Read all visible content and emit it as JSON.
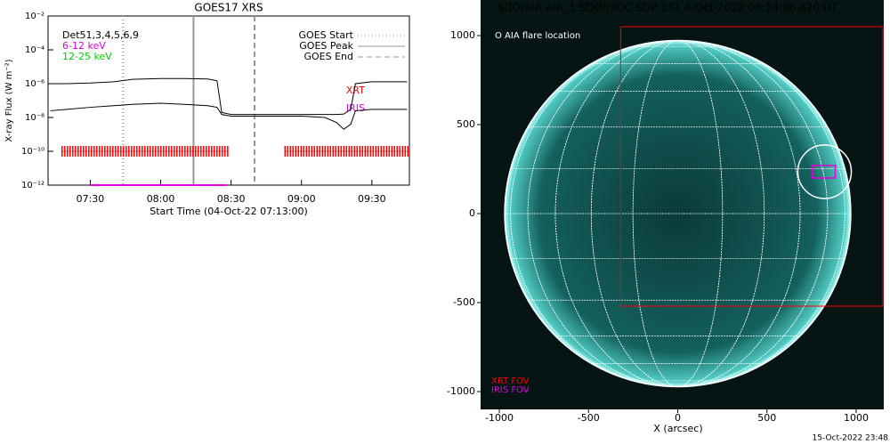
{
  "chart_data": [
    {
      "type": "line",
      "title": "GOES17 XRS",
      "ylabel": "X-ray Flux (W m⁻²)",
      "xlabel": "Start Time (04-Oct-22 07:13:00)",
      "log_y": true,
      "xlim": [
        "07:12",
        "09:46"
      ],
      "ylim": [
        1e-12,
        0.01
      ],
      "xticks": [
        "07:30",
        "08:00",
        "08:30",
        "09:00",
        "09:30"
      ],
      "yticks": [
        {
          "value": 1e-12,
          "label": "10⁻¹²"
        },
        {
          "value": 1e-10,
          "label": "10⁻¹⁰"
        },
        {
          "value": 1e-08,
          "label": "10⁻⁸"
        },
        {
          "value": 1e-06,
          "label": "10⁻⁶"
        },
        {
          "value": 0.0001,
          "label": "10⁻⁴"
        },
        {
          "value": 0.01,
          "label": "10⁻²"
        }
      ],
      "x": [
        "07:13",
        "07:20",
        "07:30",
        "07:40",
        "07:48",
        "08:00",
        "08:10",
        "08:20",
        "08:24",
        "08:26",
        "08:30",
        "08:45",
        "09:00",
        "09:10",
        "09:15",
        "09:18",
        "09:21",
        "09:23",
        "09:30",
        "09:40",
        "09:45"
      ],
      "series": [
        {
          "color": "#000000",
          "values": [
            1e-06,
            1e-06,
            1.1e-06,
            1.3e-06,
            1.8e-06,
            2e-06,
            2e-06,
            1.9e-06,
            1.5e-06,
            2e-08,
            1.5e-08,
            1.5e-08,
            1.5e-08,
            1.5e-08,
            1.5e-08,
            1.6e-08,
            3e-08,
            1e-06,
            1.3e-06,
            1.3e-06,
            1.3e-06
          ]
        },
        {
          "color": "#000000",
          "values": [
            2.5e-08,
            3e-08,
            4e-08,
            5e-08,
            6e-08,
            7e-08,
            6e-08,
            5e-08,
            4e-08,
            1.5e-08,
            1.2e-08,
            1.2e-08,
            1.2e-08,
            1e-08,
            5e-09,
            2e-09,
            4e-09,
            2.5e-08,
            3e-08,
            3e-08,
            3e-08
          ]
        }
      ],
      "detectors": [
        {
          "label": "Det51,3,4,5,6,9",
          "color": "#000000"
        },
        {
          "label": "6-12 keV",
          "color": "#e000e0"
        },
        {
          "label": "12-25 keV",
          "color": "#00d000"
        }
      ],
      "events": [
        {
          "name": "GOES Start",
          "x": "07:44",
          "style": "dotted",
          "color": "#999999"
        },
        {
          "name": "GOES Peak",
          "x": "08:14",
          "style": "solid",
          "color": "#999999"
        },
        {
          "name": "GOES End",
          "x": "08:40",
          "style": "dashed",
          "color": "#999999"
        }
      ],
      "instruments": [
        {
          "name": "XRT",
          "color": "#ff0000",
          "y": 1e-10,
          "intervals": [
            [
              "07:18",
              "08:29"
            ],
            [
              "08:53",
              "09:46"
            ]
          ]
        },
        {
          "name": "IRIS",
          "color": "#e000e0",
          "y": 1e-12,
          "intervals": [
            [
              "07:30",
              "08:28"
            ]
          ]
        }
      ]
    },
    {
      "type": "image",
      "title": "SDO/AIA AIA_1 SDO/JSOC-SDP 131  4-Oct-2022 08:14:06.620 UT",
      "xlabel": "X (arcsec)",
      "xlim": [
        -1105,
        1090
      ],
      "ylim": [
        -1100,
        1200
      ],
      "xticks": [
        -1000,
        -500,
        0,
        500,
        1000
      ],
      "yticks": [
        -1000,
        -500,
        0,
        500,
        1000
      ],
      "sun_radius": 970,
      "flare_label": "O AIA flare location",
      "flare": {
        "x": 823,
        "y": 235,
        "r": 150
      },
      "xrt_fov": {
        "label": "XRT FOV",
        "color": "#ff0000",
        "x": [
          -320,
          1150
        ],
        "y": [
          -520,
          1050
        ]
      },
      "iris_fov": {
        "label": "IRIS FOV",
        "color": "#e000e0",
        "x": [
          753,
          883
        ],
        "y": [
          200,
          270
        ]
      },
      "footer": "15-Oct-2022 23:48"
    }
  ]
}
